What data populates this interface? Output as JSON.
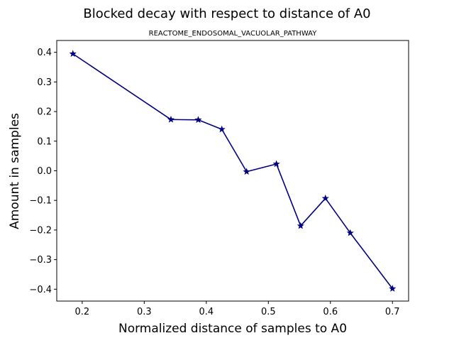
{
  "chart_data": {
    "type": "line",
    "suptitle": "Blocked decay with respect to distance of A0",
    "title": "REACTOME_ENDOSOMAL_VACUOLAR_PATHWAY",
    "xlabel": "Normalized distance of samples to A0",
    "ylabel": "Amount in samples",
    "xlim": [
      0.159,
      0.726
    ],
    "ylim": [
      -0.44,
      0.44
    ],
    "xticks": [
      0.2,
      0.3,
      0.4,
      0.5,
      0.6,
      0.7
    ],
    "xtick_labels": [
      "0.2",
      "0.3",
      "0.4",
      "0.5",
      "0.6",
      "0.7"
    ],
    "yticks": [
      0.4,
      0.3,
      0.2,
      0.1,
      0.0,
      -0.1,
      -0.2,
      -0.3,
      -0.4
    ],
    "ytick_labels": [
      "0.4",
      "0.3",
      "0.2",
      "0.1",
      "0.0",
      "−0.1",
      "−0.2",
      "−0.3",
      "−0.4"
    ],
    "grid": false,
    "legend": false,
    "marker": "star",
    "color": "#000080",
    "series": [
      {
        "x": [
          0.185,
          0.343,
          0.387,
          0.425,
          0.465,
          0.513,
          0.552,
          0.592,
          0.632,
          0.7
        ],
        "y": [
          0.395,
          0.173,
          0.172,
          0.14,
          -0.003,
          0.023,
          -0.186,
          -0.093,
          -0.21,
          -0.398
        ]
      }
    ]
  }
}
